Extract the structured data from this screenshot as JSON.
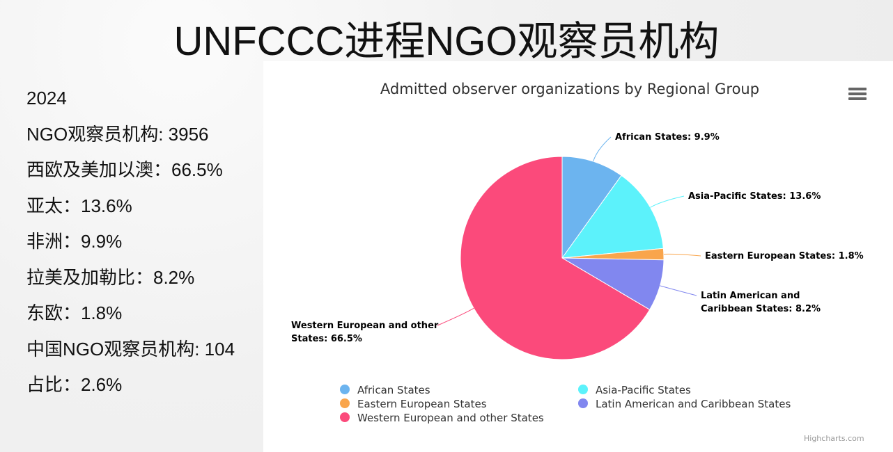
{
  "slide": {
    "title": "UNFCCC进程NGO观察员机构"
  },
  "left_panel": {
    "lines": [
      "2024",
      "NGO观察员机构: 3956",
      "西欧及美加以澳：66.5%",
      "亚太：13.6%",
      "非洲：9.9%",
      "拉美及加勒比：8.2%",
      "东欧：1.8%",
      "中国NGO观察员机构: 104",
      "占比：2.6%"
    ]
  },
  "chart_data": {
    "type": "pie",
    "title": "Admitted observer organizations by Regional Group",
    "credit": "Highcharts.com",
    "legend_position": "bottom",
    "slices": [
      {
        "name": "African States",
        "value": 9.9,
        "color": "#6cb4ef",
        "label_lines": [
          "African States: 9.9%"
        ]
      },
      {
        "name": "Asia-Pacific States",
        "value": 13.6,
        "color": "#5cf2fb",
        "label_lines": [
          "Asia-Pacific States: 13.6%"
        ]
      },
      {
        "name": "Eastern European States",
        "value": 1.8,
        "color": "#f9a54c",
        "label_lines": [
          "Eastern European States: 1.8%"
        ]
      },
      {
        "name": "Latin American and Caribbean States",
        "value": 8.2,
        "color": "#8187ef",
        "label_lines": [
          "Latin American and",
          "Caribbean States: 8.2%"
        ]
      },
      {
        "name": "Western European and other States",
        "value": 66.5,
        "color": "#fb4a7b",
        "label_lines": [
          "Western European and other",
          "States: 66.5%"
        ]
      }
    ]
  }
}
